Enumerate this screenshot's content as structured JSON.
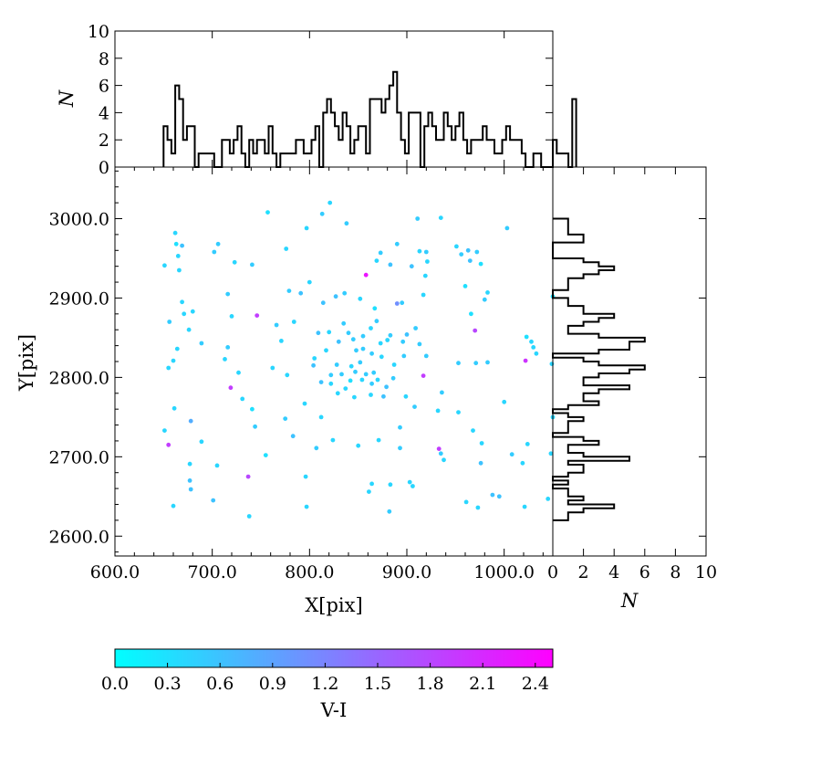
{
  "chart_data": [
    {
      "type": "scatter",
      "name": "main",
      "xlabel": "X[pix]",
      "ylabel": "Y[pix]",
      "xlim": [
        600,
        1050
      ],
      "ylim": [
        2575,
        3065
      ],
      "xticks": [
        600,
        700,
        800,
        900,
        1000
      ],
      "xtick_labels": [
        "600.0",
        "700.0",
        "800.0",
        "900.0",
        "1000.0"
      ],
      "yticks": [
        2600,
        2700,
        2800,
        2900,
        3000
      ],
      "ytick_labels": [
        "2600.0",
        "2700.0",
        "2800.0",
        "2900.0",
        "3000.0"
      ],
      "grid": false,
      "colormap": [
        "#00ffff",
        "#ff00ff"
      ],
      "points": [
        [
          821,
          3020,
          0.4
        ],
        [
          757,
          3008,
          0.3
        ],
        [
          813,
          3006,
          0.5
        ],
        [
          797,
          2988,
          0.4
        ],
        [
          838,
          2994,
          0.5
        ],
        [
          911,
          3000,
          0.5
        ],
        [
          935,
          3001,
          0.4
        ],
        [
          1003,
          2988,
          0.5
        ],
        [
          662,
          2982,
          0.4
        ],
        [
          663,
          2968,
          0.3
        ],
        [
          669,
          2966,
          0.6
        ],
        [
          706,
          2968,
          0.5
        ],
        [
          776,
          2962,
          0.4
        ],
        [
          951,
          2965,
          0.4
        ],
        [
          702,
          2958,
          0.5
        ],
        [
          873,
          2957,
          0.5
        ],
        [
          890,
          2968,
          0.5
        ],
        [
          913,
          2959,
          0.4
        ],
        [
          920,
          2958,
          0.5
        ],
        [
          956,
          2955,
          0.5
        ],
        [
          963,
          2960,
          0.6
        ],
        [
          972,
          2958,
          0.5
        ],
        [
          869,
          2947,
          0.4
        ],
        [
          665,
          2953,
          0.4
        ],
        [
          723,
          2945,
          0.4
        ],
        [
          741,
          2942,
          0.5
        ],
        [
          651,
          2941,
          0.4
        ],
        [
          666,
          2935,
          0.4
        ],
        [
          883,
          2942,
          0.6
        ],
        [
          905,
          2940,
          0.6
        ],
        [
          921,
          2946,
          0.4
        ],
        [
          965,
          2947,
          0.6
        ],
        [
          976,
          2943,
          0.3
        ],
        [
          858,
          2929,
          2.3
        ],
        [
          919,
          2928,
          0.4
        ],
        [
          800,
          2920,
          0.4
        ],
        [
          779,
          2909,
          0.5
        ],
        [
          791,
          2906,
          0.6
        ],
        [
          836,
          2906,
          0.5
        ],
        [
          960,
          2915,
          0.3
        ],
        [
          716,
          2905,
          0.5
        ],
        [
          852,
          2899,
          0.4
        ],
        [
          827,
          2902,
          0.6
        ],
        [
          917,
          2904,
          0.4
        ],
        [
          983,
          2907,
          0.4
        ],
        [
          1050,
          2902,
          0.3
        ],
        [
          669,
          2895,
          0.4
        ],
        [
          680,
          2883,
          0.4
        ],
        [
          814,
          2894,
          0.6
        ],
        [
          890,
          2893,
          1.1
        ],
        [
          895,
          2894,
          0.5
        ],
        [
          980,
          2898,
          0.5
        ],
        [
          671,
          2880,
          0.4
        ],
        [
          966,
          2880,
          0.3
        ],
        [
          746,
          2878,
          1.9
        ],
        [
          720,
          2877,
          0.4
        ],
        [
          656,
          2870,
          0.5
        ],
        [
          784,
          2870,
          0.4
        ],
        [
          869,
          2871,
          0.5
        ],
        [
          867,
          2887,
          0.3
        ],
        [
          835,
          2868,
          0.5
        ],
        [
          766,
          2866,
          0.5
        ],
        [
          676,
          2860,
          0.4
        ],
        [
          909,
          2862,
          0.5
        ],
        [
          970,
          2859,
          1.8
        ],
        [
          1023,
          2851,
          0.3
        ],
        [
          900,
          2854,
          0.6
        ],
        [
          883,
          2853,
          0.5
        ],
        [
          896,
          2845,
          0.5
        ],
        [
          840,
          2856,
          0.5
        ],
        [
          880,
          2847,
          0.4
        ],
        [
          809,
          2856,
          0.6
        ],
        [
          820,
          2857,
          0.4
        ],
        [
          855,
          2852,
          0.5
        ],
        [
          863,
          2862,
          0.4
        ],
        [
          771,
          2846,
          0.4
        ],
        [
          830,
          2845,
          0.6
        ],
        [
          845,
          2848,
          0.5
        ],
        [
          873,
          2843,
          0.4
        ],
        [
          913,
          2842,
          0.5
        ],
        [
          1028,
          2845,
          0.4
        ],
        [
          1030,
          2838,
          0.4
        ],
        [
          1033,
          2830,
          0.4
        ],
        [
          689,
          2843,
          0.5
        ],
        [
          664,
          2836,
          0.4
        ],
        [
          716,
          2838,
          0.5
        ],
        [
          817,
          2834,
          0.4
        ],
        [
          848,
          2834,
          0.5
        ],
        [
          855,
          2836,
          0.5
        ],
        [
          805,
          2824,
          0.4
        ],
        [
          864,
          2830,
          0.5
        ],
        [
          874,
          2826,
          0.4
        ],
        [
          897,
          2827,
          0.5
        ],
        [
          920,
          2827,
          0.5
        ],
        [
          660,
          2821,
          0.4
        ],
        [
          713,
          2823,
          0.4
        ],
        [
          1022,
          2821,
          2.0
        ],
        [
          1049,
          2817,
          0.4
        ],
        [
          655,
          2812,
          0.4
        ],
        [
          762,
          2812,
          0.4
        ],
        [
          804,
          2815,
          0.6
        ],
        [
          828,
          2816,
          0.5
        ],
        [
          843,
          2814,
          0.4
        ],
        [
          852,
          2819,
          0.5
        ],
        [
          887,
          2816,
          0.4
        ],
        [
          953,
          2818,
          0.5
        ],
        [
          971,
          2818,
          0.5
        ],
        [
          983,
          2819,
          0.5
        ],
        [
          727,
          2806,
          0.4
        ],
        [
          777,
          2803,
          0.4
        ],
        [
          822,
          2803,
          0.5
        ],
        [
          833,
          2804,
          0.5
        ],
        [
          847,
          2807,
          0.5
        ],
        [
          858,
          2804,
          0.5
        ],
        [
          866,
          2806,
          0.5
        ],
        [
          842,
          2796,
          0.3
        ],
        [
          854,
          2797,
          0.4
        ],
        [
          864,
          2792,
          0.5
        ],
        [
          870,
          2797,
          0.4
        ],
        [
          886,
          2799,
          0.5
        ],
        [
          917,
          2802,
          1.9
        ],
        [
          812,
          2794,
          0.6
        ],
        [
          822,
          2792,
          0.4
        ],
        [
          837,
          2786,
          0.4
        ],
        [
          879,
          2788,
          0.6
        ],
        [
          863,
          2778,
          0.4
        ],
        [
          719,
          2787,
          1.9
        ],
        [
          829,
          2780,
          0.4
        ],
        [
          846,
          2775,
          0.4
        ],
        [
          876,
          2776,
          0.6
        ],
        [
          899,
          2776,
          0.4
        ],
        [
          936,
          2781,
          0.5
        ],
        [
          731,
          2773,
          0.4
        ],
        [
          1000,
          2769,
          0.4
        ],
        [
          795,
          2767,
          0.4
        ],
        [
          661,
          2761,
          0.4
        ],
        [
          741,
          2760,
          0.3
        ],
        [
          908,
          2763,
          0.5
        ],
        [
          932,
          2758,
          0.4
        ],
        [
          953,
          2756,
          0.4
        ],
        [
          678,
          2745,
          0.8
        ],
        [
          744,
          2738,
          0.5
        ],
        [
          812,
          2750,
          0.4
        ],
        [
          1050,
          2750,
          0.4
        ],
        [
          775,
          2748,
          0.5
        ],
        [
          893,
          2737,
          0.5
        ],
        [
          968,
          2733,
          0.4
        ],
        [
          651,
          2733,
          0.4
        ],
        [
          783,
          2726,
          0.6
        ],
        [
          655,
          2715,
          1.9
        ],
        [
          807,
          2711,
          0.5
        ],
        [
          824,
          2721,
          0.4
        ],
        [
          850,
          2714,
          0.4
        ],
        [
          871,
          2721,
          0.4
        ],
        [
          893,
          2711,
          0.5
        ],
        [
          933,
          2710,
          1.9
        ],
        [
          935,
          2704,
          0.5
        ],
        [
          977,
          2717,
          0.4
        ],
        [
          1024,
          2716,
          0.4
        ],
        [
          1048,
          2704,
          0.4
        ],
        [
          1008,
          2703,
          0.5
        ],
        [
          689,
          2719,
          0.4
        ],
        [
          705,
          2689,
          0.4
        ],
        [
          755,
          2702,
          0.3
        ],
        [
          677,
          2691,
          0.4
        ],
        [
          938,
          2696,
          0.4
        ],
        [
          976,
          2692,
          0.6
        ],
        [
          1019,
          2692,
          0.4
        ],
        [
          737,
          2675,
          1.8
        ],
        [
          796,
          2675,
          0.4
        ],
        [
          677,
          2670,
          0.6
        ],
        [
          678,
          2659,
          0.6
        ],
        [
          864,
          2666,
          0.4
        ],
        [
          883,
          2665,
          0.4
        ],
        [
          903,
          2668,
          0.4
        ],
        [
          906,
          2663,
          0.4
        ],
        [
          861,
          2656,
          0.4
        ],
        [
          988,
          2652,
          0.6
        ],
        [
          995,
          2650,
          0.6
        ],
        [
          701,
          2645,
          0.6
        ],
        [
          1045,
          2647,
          0.4
        ],
        [
          961,
          2643,
          0.4
        ],
        [
          660,
          2638,
          0.4
        ],
        [
          797,
          2637,
          0.4
        ],
        [
          973,
          2636,
          0.4
        ],
        [
          1021,
          2637,
          0.4
        ],
        [
          882,
          2631,
          0.5
        ],
        [
          738,
          2625,
          0.4
        ]
      ]
    },
    {
      "type": "histogram",
      "name": "top",
      "ylabel": "N",
      "ylim": [
        0,
        10
      ],
      "yticks": [
        0,
        2,
        4,
        6,
        8,
        10
      ],
      "ytick_labels": [
        "0",
        "2",
        "4",
        "6",
        "8",
        "10"
      ],
      "bin_start": 650,
      "bin_width": 4.0,
      "counts": [
        3,
        2,
        1,
        6,
        5,
        2,
        3,
        3,
        0,
        1,
        1,
        1,
        1,
        0,
        0,
        2,
        2,
        1,
        2,
        3,
        1,
        0,
        2,
        1,
        2,
        2,
        1,
        3,
        1,
        0,
        1,
        1,
        1,
        1,
        2,
        2,
        1,
        1,
        2,
        3,
        0,
        4,
        5,
        4,
        3,
        2,
        4,
        3,
        1,
        2,
        3,
        3,
        1,
        5,
        5,
        5,
        4,
        5,
        6,
        7,
        4,
        2,
        1,
        4,
        4,
        4,
        0,
        3,
        4,
        3,
        2,
        2,
        4,
        3,
        2,
        3,
        4,
        2,
        1,
        2,
        2,
        2,
        3,
        2,
        2,
        1,
        1,
        2,
        3,
        2,
        2,
        2,
        1,
        0,
        0,
        1,
        1,
        0,
        0,
        0,
        2,
        1,
        1,
        1,
        0,
        5
      ]
    },
    {
      "type": "histogram",
      "name": "right",
      "orientation": "horizontal",
      "xlabel": "N",
      "xlim": [
        0,
        10
      ],
      "xticks": [
        0,
        2,
        4,
        6,
        8,
        10
      ],
      "xtick_labels": [
        "0",
        "2",
        "4",
        "6",
        "8",
        "10"
      ],
      "bin_start": 2620,
      "bin_width": 5.0,
      "counts": [
        1,
        1,
        2,
        4,
        1,
        2,
        1,
        1,
        0,
        1,
        0,
        1,
        2,
        2,
        1,
        5,
        2,
        1,
        1,
        3,
        2,
        0,
        1,
        1,
        1,
        2,
        1,
        0,
        1,
        3,
        2,
        2,
        3,
        5,
        2,
        2,
        3,
        5,
        6,
        3,
        2,
        0,
        3,
        5,
        5,
        6,
        3,
        1,
        1,
        2,
        3,
        4,
        2,
        2,
        1,
        1,
        0,
        0,
        1,
        1,
        1,
        2,
        3,
        4,
        3,
        2,
        0,
        0,
        0,
        0,
        2,
        2,
        1,
        1,
        1,
        1
      ]
    },
    {
      "type": "colorbar",
      "label": "V-I",
      "range": [
        0,
        2.5
      ],
      "ticks": [
        0.0,
        0.3,
        0.6,
        0.9,
        1.2,
        1.5,
        1.8,
        2.1,
        2.4
      ],
      "tick_labels": [
        "0.0",
        "0.3",
        "0.6",
        "0.9",
        "1.2",
        "1.5",
        "1.8",
        "2.1",
        "2.4"
      ],
      "colors": [
        "#00ffff",
        "#ff00ff"
      ]
    }
  ]
}
